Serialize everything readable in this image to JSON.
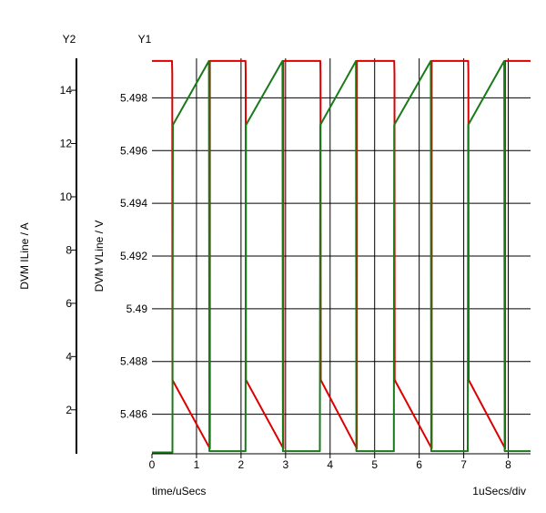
{
  "chart_data": {
    "type": "line",
    "x_label": "time/uSecs",
    "x_scale_label": "1uSecs/div",
    "x_range": [
      0,
      8.5
    ],
    "x_ticks": [
      0,
      1,
      2,
      3,
      4,
      5,
      6,
      7,
      8
    ],
    "grid": true,
    "axes": {
      "y2": {
        "name": "Y2",
        "label": "DVM ILine / A",
        "range": [
          0.35,
          15.2
        ],
        "ticks": [
          2,
          4,
          6,
          8,
          10,
          12,
          14
        ]
      },
      "y1": {
        "name": "Y1",
        "label": "DVM VLine / V",
        "range": [
          5.4845,
          5.4995
        ],
        "ticks": [
          5.486,
          5.488,
          5.49,
          5.492,
          5.494,
          5.496,
          5.498
        ],
        "tick_labels": [
          "5.486",
          "5.488",
          "5.49",
          "5.492",
          "5.494",
          "5.496",
          "5.498"
        ]
      }
    },
    "series": [
      {
        "id": "vline",
        "axis": "y1",
        "color": "#dd0000",
        "points": [
          [
            0.0,
            5.4994
          ],
          [
            0.45,
            5.4994
          ],
          [
            0.455,
            5.4989
          ],
          [
            0.46,
            5.4873
          ],
          [
            1.3,
            5.4847
          ],
          [
            1.3,
            5.4994
          ],
          [
            1.34,
            5.4994
          ],
          [
            2.1,
            5.4994
          ],
          [
            2.105,
            5.4989
          ],
          [
            2.11,
            5.4873
          ],
          [
            2.95,
            5.4847
          ],
          [
            2.95,
            5.4994
          ],
          [
            2.99,
            5.4994
          ],
          [
            3.78,
            5.4994
          ],
          [
            3.785,
            5.4989
          ],
          [
            3.79,
            5.4873
          ],
          [
            4.6,
            5.4847
          ],
          [
            4.6,
            5.4994
          ],
          [
            4.64,
            5.4994
          ],
          [
            5.44,
            5.4994
          ],
          [
            5.445,
            5.4989
          ],
          [
            5.45,
            5.4873
          ],
          [
            6.28,
            5.4847
          ],
          [
            6.28,
            5.4994
          ],
          [
            6.32,
            5.4994
          ],
          [
            7.1,
            5.4994
          ],
          [
            7.105,
            5.4989
          ],
          [
            7.11,
            5.4873
          ],
          [
            7.93,
            5.4847
          ],
          [
            7.93,
            5.4994
          ],
          [
            7.97,
            5.4994
          ],
          [
            8.5,
            5.4994
          ]
        ]
      },
      {
        "id": "iline",
        "axis": "y2",
        "color": "#1a7a1a",
        "points": [
          [
            0.0,
            0.4
          ],
          [
            0.46,
            0.4
          ],
          [
            0.47,
            12.7
          ],
          [
            1.28,
            15.1
          ],
          [
            1.29,
            0.45
          ],
          [
            2.1,
            0.45
          ],
          [
            2.11,
            12.7
          ],
          [
            2.93,
            15.1
          ],
          [
            2.94,
            0.45
          ],
          [
            3.77,
            0.45
          ],
          [
            3.78,
            12.7
          ],
          [
            4.58,
            15.1
          ],
          [
            4.59,
            0.45
          ],
          [
            5.43,
            0.45
          ],
          [
            5.44,
            12.7
          ],
          [
            6.26,
            15.1
          ],
          [
            6.27,
            0.45
          ],
          [
            7.09,
            0.45
          ],
          [
            7.1,
            12.7
          ],
          [
            7.91,
            15.1
          ],
          [
            7.92,
            0.45
          ],
          [
            8.5,
            0.45
          ]
        ]
      }
    ]
  }
}
